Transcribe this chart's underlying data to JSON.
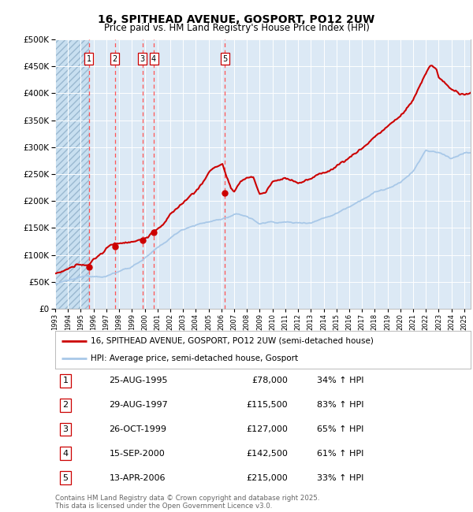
{
  "title": "16, SPITHEAD AVENUE, GOSPORT, PO12 2UW",
  "subtitle": "Price paid vs. HM Land Registry's House Price Index (HPI)",
  "ylim": [
    0,
    500000
  ],
  "yticks": [
    0,
    50000,
    100000,
    150000,
    200000,
    250000,
    300000,
    350000,
    400000,
    450000,
    500000
  ],
  "ytick_labels": [
    "£0",
    "£50K",
    "£100K",
    "£150K",
    "£200K",
    "£250K",
    "£300K",
    "£350K",
    "£400K",
    "£450K",
    "£500K"
  ],
  "background_color": "#dce9f5",
  "grid_color": "#ffffff",
  "line_color_red": "#cc0000",
  "line_color_blue": "#a8c8e8",
  "sale_marker_color": "#cc0000",
  "vline_color": "#ff5555",
  "purchases": [
    {
      "label": "1",
      "date_x": 1995.65,
      "price": 78000
    },
    {
      "label": "2",
      "date_x": 1997.66,
      "price": 115500
    },
    {
      "label": "3",
      "date_x": 1999.82,
      "price": 127000
    },
    {
      "label": "4",
      "date_x": 2000.71,
      "price": 142500
    },
    {
      "label": "5",
      "date_x": 2006.28,
      "price": 215000
    }
  ],
  "legend_entries": [
    "16, SPITHEAD AVENUE, GOSPORT, PO12 2UW (semi-detached house)",
    "HPI: Average price, semi-detached house, Gosport"
  ],
  "table_entries": [
    {
      "num": "1",
      "date": "25-AUG-1995",
      "price": "£78,000",
      "change": "34% ↑ HPI"
    },
    {
      "num": "2",
      "date": "29-AUG-1997",
      "price": "£115,500",
      "change": "83% ↑ HPI"
    },
    {
      "num": "3",
      "date": "26-OCT-1999",
      "price": "£127,000",
      "change": "65% ↑ HPI"
    },
    {
      "num": "4",
      "date": "15-SEP-2000",
      "price": "£142,500",
      "change": "61% ↑ HPI"
    },
    {
      "num": "5",
      "date": "13-APR-2006",
      "price": "£215,000",
      "change": "33% ↑ HPI"
    }
  ],
  "footnote1": "Contains HM Land Registry data © Crown copyright and database right 2025.",
  "footnote2": "This data is licensed under the Open Government Licence v3.0.",
  "xmin": 1993.0,
  "xmax": 2025.5
}
